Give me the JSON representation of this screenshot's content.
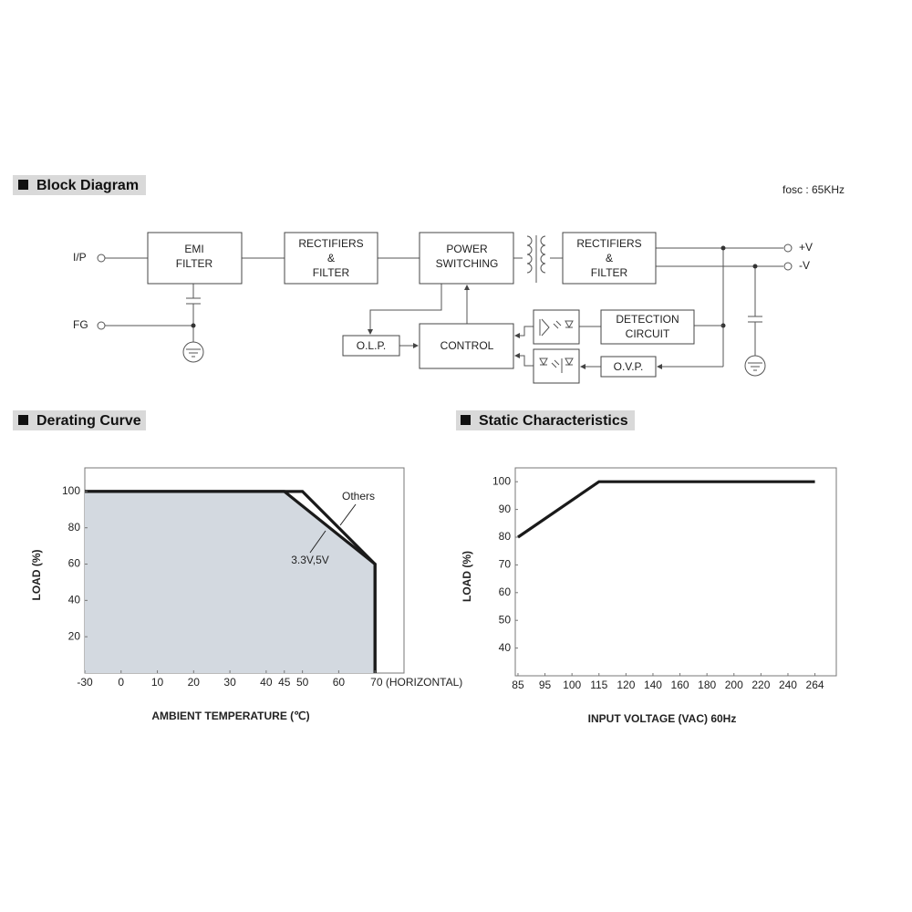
{
  "block_diagram": {
    "title": "Block Diagram",
    "note": "fosc : 65KHz",
    "terminals": [
      "I/P",
      "FG",
      "+V",
      "-V"
    ],
    "blocks": [
      {
        "lines": [
          "EMI",
          "FILTER"
        ]
      },
      {
        "lines": [
          "RECTIFIERS",
          "&",
          "FILTER"
        ]
      },
      {
        "lines": [
          "POWER",
          "SWITCHING"
        ]
      },
      {
        "lines": [
          "RECTIFIERS",
          "&",
          "FILTER"
        ]
      },
      {
        "lines": [
          "DETECTION",
          "CIRCUIT"
        ]
      },
      {
        "lines": [
          "O.L.P."
        ]
      },
      {
        "lines": [
          "CONTROL"
        ]
      },
      {
        "lines": [
          "O.V.P."
        ]
      }
    ]
  },
  "chart_data": [
    {
      "type": "line",
      "title": "Derating Curve",
      "x_label": "AMBIENT TEMPERATURE (℃)",
      "y_label": "LOAD (%)",
      "series": [
        {
          "name": "Others",
          "color": "#1a1a1a",
          "x": [
            -30,
            50,
            70,
            70
          ],
          "values": [
            100,
            100,
            60,
            0
          ]
        },
        {
          "name": "3.3V,5V",
          "color": "#1a1a1a",
          "fill": "#d3d9e0",
          "x": [
            -30,
            45,
            70,
            70
          ],
          "values": [
            100,
            100,
            60,
            0
          ]
        }
      ],
      "xlim": [
        -30,
        78
      ],
      "xbreak": [
        -30,
        0
      ],
      "xticks": [
        -30,
        0,
        10,
        20,
        30,
        40,
        45,
        50,
        60,
        {
          "value": 70,
          "label": "70 (HORIZONTAL)"
        }
      ],
      "ylim": [
        0,
        113
      ],
      "yticks": [
        20,
        40,
        60,
        80,
        100
      ]
    },
    {
      "type": "line",
      "title": "Static Characteristics",
      "x_label": "INPUT VOLTAGE (VAC) 60Hz",
      "y_label": "LOAD (%)",
      "series": [
        {
          "color": "#1a1a1a",
          "x": [
            85,
            115,
            264
          ],
          "values": [
            80,
            100,
            100
          ]
        }
      ],
      "xlim": [
        84,
        283
      ],
      "xticks": [
        85,
        95,
        100,
        115,
        120,
        140,
        160,
        180,
        200,
        220,
        240,
        264
      ],
      "ylim": [
        30,
        105
      ],
      "yticks": [
        40,
        50,
        60,
        70,
        80,
        90,
        100
      ]
    }
  ]
}
